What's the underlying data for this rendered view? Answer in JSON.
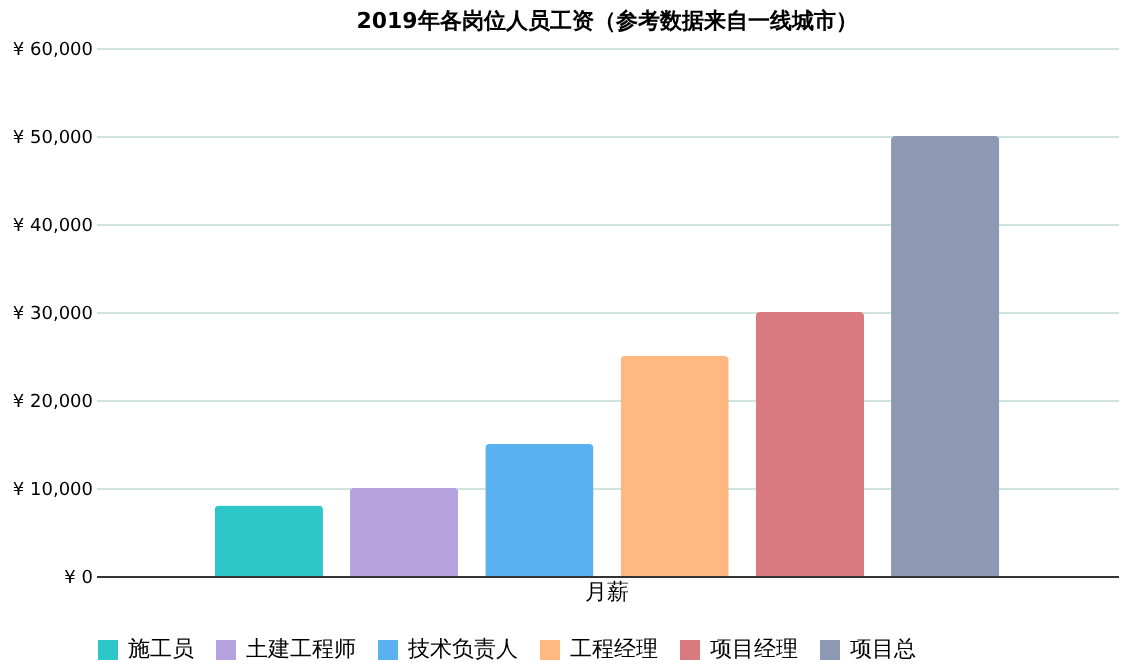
{
  "chart_data": {
    "type": "bar",
    "title": "2019年各岗位人员工资（参考数据来自一线城市）",
    "categories": [
      "月薪"
    ],
    "series": [
      {
        "name": "施工员",
        "color": "#2ec7c9",
        "values": [
          8000
        ]
      },
      {
        "name": "土建工程师",
        "color": "#b6a2de",
        "values": [
          10000
        ]
      },
      {
        "name": "技术负责人",
        "color": "#5ab1ef",
        "values": [
          15000
        ]
      },
      {
        "name": "工程经理",
        "color": "#ffb980",
        "values": [
          25000
        ]
      },
      {
        "name": "项目经理",
        "color": "#d87a80",
        "values": [
          30000
        ]
      },
      {
        "name": "项目总",
        "color": "#8d98b3",
        "values": [
          50000
        ]
      }
    ],
    "ylim": [
      0,
      60000
    ],
    "yticks": [
      {
        "value": 0,
        "label": "¥ 0"
      },
      {
        "value": 10000,
        "label": "¥ 10,000"
      },
      {
        "value": 20000,
        "label": "¥ 20,000"
      },
      {
        "value": 30000,
        "label": "¥ 30,000"
      },
      {
        "value": 40000,
        "label": "¥ 40,000"
      },
      {
        "value": 50000,
        "label": "¥ 50,000"
      },
      {
        "value": 60000,
        "label": "¥ 60,000"
      }
    ],
    "grid": "y",
    "legend": "bottom"
  }
}
